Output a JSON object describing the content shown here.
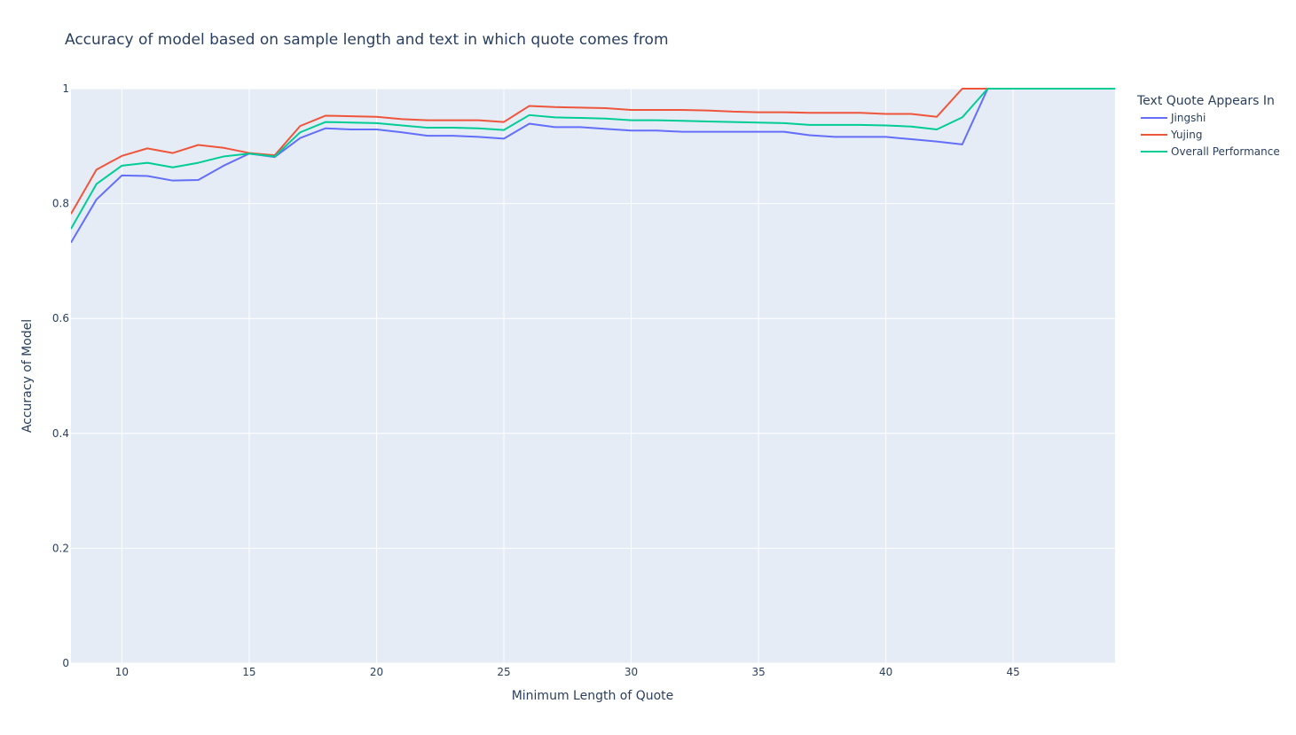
{
  "chart_data": {
    "type": "line",
    "title": "Accuracy of model based on sample length and text in which quote comes from",
    "xlabel": "Minimum Length of Quote",
    "ylabel": "Accuracy of Model",
    "xlim": [
      8,
      49
    ],
    "ylim": [
      0,
      1
    ],
    "x_ticks": [
      10,
      15,
      20,
      25,
      30,
      35,
      40,
      45
    ],
    "y_ticks": [
      0,
      0.2,
      0.4,
      0.6,
      0.8,
      1
    ],
    "y_tick_labels": [
      "0",
      "0.2",
      "0.4",
      "0.6",
      "0.8",
      "1"
    ],
    "grid": true,
    "legend": {
      "title": "Text Quote Appears In",
      "position": "top-right"
    },
    "x": [
      8,
      9,
      10,
      11,
      12,
      13,
      14,
      15,
      16,
      17,
      18,
      19,
      20,
      21,
      22,
      23,
      24,
      25,
      26,
      27,
      28,
      29,
      30,
      31,
      32,
      33,
      34,
      35,
      36,
      37,
      38,
      39,
      40,
      41,
      42,
      43,
      44,
      45,
      46,
      47,
      48,
      49
    ],
    "series": [
      {
        "name": "Jingshi",
        "color": "#636efa",
        "values": [
          0.732,
          0.807,
          0.849,
          0.848,
          0.84,
          0.841,
          0.866,
          0.887,
          0.881,
          0.914,
          0.931,
          0.929,
          0.929,
          0.924,
          0.918,
          0.918,
          0.916,
          0.913,
          0.939,
          0.933,
          0.933,
          0.93,
          0.927,
          0.927,
          0.925,
          0.925,
          0.925,
          0.925,
          0.925,
          0.919,
          0.916,
          0.916,
          0.916,
          0.912,
          0.908,
          0.903,
          1.0,
          1.0,
          1.0,
          1.0,
          1.0,
          1.0
        ]
      },
      {
        "name": "Yujing",
        "color": "#ef553b",
        "values": [
          0.782,
          0.859,
          0.883,
          0.896,
          0.888,
          0.902,
          0.897,
          0.888,
          0.884,
          0.935,
          0.953,
          0.952,
          0.951,
          0.947,
          0.945,
          0.945,
          0.945,
          0.942,
          0.97,
          0.968,
          0.967,
          0.966,
          0.963,
          0.963,
          0.963,
          0.962,
          0.96,
          0.959,
          0.959,
          0.958,
          0.958,
          0.958,
          0.956,
          0.956,
          0.951,
          1.0,
          1.0,
          1.0,
          1.0,
          1.0,
          1.0,
          1.0
        ]
      },
      {
        "name": "Overall Performance",
        "color": "#00cc96",
        "values": [
          0.756,
          0.834,
          0.866,
          0.871,
          0.863,
          0.871,
          0.882,
          0.887,
          0.882,
          0.924,
          0.942,
          0.941,
          0.94,
          0.936,
          0.932,
          0.932,
          0.931,
          0.928,
          0.954,
          0.95,
          0.949,
          0.948,
          0.945,
          0.945,
          0.944,
          0.943,
          0.942,
          0.941,
          0.94,
          0.937,
          0.937,
          0.937,
          0.936,
          0.934,
          0.929,
          0.95,
          1.0,
          1.0,
          1.0,
          1.0,
          1.0,
          1.0
        ]
      }
    ]
  }
}
